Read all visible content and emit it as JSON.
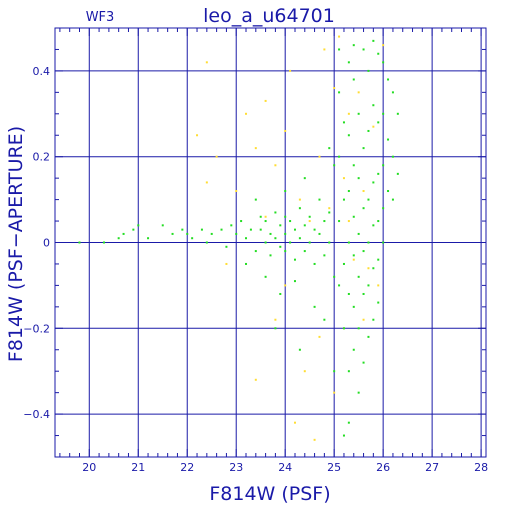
{
  "chart_data": {
    "type": "scatter",
    "panel_label": "WF3",
    "title": "leo_a_u64701",
    "xlabel": "F814W (PSF)",
    "ylabel": "F814W (PSF−APERTURE)",
    "xlim": [
      19.3,
      28.1
    ],
    "ylim": [
      -0.5,
      0.5
    ],
    "xticks": [
      20,
      21,
      22,
      23,
      24,
      25,
      26,
      27,
      28
    ],
    "xtick_labels": [
      "20",
      "21",
      "22",
      "23",
      "24",
      "25",
      "26",
      "27",
      "28"
    ],
    "yticks": [
      -0.4,
      -0.2,
      0,
      0.2,
      0.4
    ],
    "ytick_labels": [
      "−0.4",
      "−0.2",
      "0",
      "0.2",
      "0.4"
    ],
    "grid": true,
    "colors": {
      "axes": "#1a1aa8",
      "green": "#22dd22",
      "yellow": "#ffdd33"
    },
    "series": [
      {
        "color": "green",
        "points": [
          [
            19.8,
            0.0
          ],
          [
            20.3,
            0.0
          ],
          [
            20.6,
            0.01
          ],
          [
            20.7,
            0.02
          ],
          [
            20.9,
            0.03
          ],
          [
            21.0,
            0.04
          ],
          [
            21.2,
            0.01
          ],
          [
            21.5,
            0.04
          ],
          [
            21.7,
            0.02
          ],
          [
            21.9,
            0.03
          ],
          [
            22.0,
            0.02
          ],
          [
            22.1,
            0.01
          ],
          [
            22.3,
            0.03
          ],
          [
            22.4,
            0.0
          ],
          [
            22.5,
            0.02
          ],
          [
            22.7,
            0.03
          ],
          [
            22.8,
            -0.01
          ],
          [
            22.9,
            0.04
          ],
          [
            23.0,
            0.02
          ],
          [
            23.1,
            0.05
          ],
          [
            23.2,
            0.01
          ],
          [
            23.3,
            0.03
          ],
          [
            23.4,
            -0.02
          ],
          [
            23.5,
            0.06
          ],
          [
            23.5,
            0.03
          ],
          [
            23.6,
            0.0
          ],
          [
            23.6,
            0.05
          ],
          [
            23.7,
            0.02
          ],
          [
            23.7,
            -0.03
          ],
          [
            23.8,
            0.07
          ],
          [
            23.8,
            0.01
          ],
          [
            23.9,
            0.04
          ],
          [
            23.9,
            -0.01
          ],
          [
            24.0,
            0.06
          ],
          [
            24.0,
            0.02
          ],
          [
            24.0,
            -0.02
          ],
          [
            24.1,
            0.05
          ],
          [
            24.1,
            0.0
          ],
          [
            24.2,
            0.03
          ],
          [
            24.2,
            -0.04
          ],
          [
            24.3,
            0.08
          ],
          [
            24.3,
            0.01
          ],
          [
            24.4,
            0.04
          ],
          [
            24.4,
            -0.02
          ],
          [
            24.5,
            0.06
          ],
          [
            24.5,
            0.0
          ],
          [
            24.6,
            0.03
          ],
          [
            24.6,
            -0.05
          ],
          [
            24.7,
            0.1
          ],
          [
            24.7,
            0.02
          ],
          [
            24.8,
            0.05
          ],
          [
            24.8,
            -0.03
          ],
          [
            24.9,
            0.07
          ],
          [
            24.9,
            0.0
          ],
          [
            23.6,
            -0.08
          ],
          [
            23.9,
            -0.12
          ],
          [
            24.2,
            -0.09
          ],
          [
            24.6,
            -0.15
          ],
          [
            23.2,
            -0.05
          ],
          [
            23.4,
            0.1
          ],
          [
            24.0,
            0.12
          ],
          [
            24.4,
            0.15
          ],
          [
            23.8,
            -0.2
          ],
          [
            24.3,
            -0.25
          ],
          [
            25.1,
            0.35
          ],
          [
            25.1,
            0.2
          ],
          [
            25.1,
            0.05
          ],
          [
            25.1,
            -0.1
          ],
          [
            25.2,
            0.28
          ],
          [
            25.2,
            0.1
          ],
          [
            25.2,
            -0.05
          ],
          [
            25.2,
            -0.2
          ],
          [
            25.3,
            0.42
          ],
          [
            25.3,
            0.25
          ],
          [
            25.3,
            0.12
          ],
          [
            25.3,
            0.0
          ],
          [
            25.3,
            -0.12
          ],
          [
            25.3,
            -0.3
          ],
          [
            25.4,
            0.38
          ],
          [
            25.4,
            0.18
          ],
          [
            25.4,
            0.06
          ],
          [
            25.4,
            -0.03
          ],
          [
            25.4,
            -0.15
          ],
          [
            25.4,
            -0.25
          ],
          [
            25.5,
            0.3
          ],
          [
            25.5,
            0.15
          ],
          [
            25.5,
            0.02
          ],
          [
            25.5,
            -0.08
          ],
          [
            25.5,
            -0.2
          ],
          [
            25.5,
            -0.35
          ],
          [
            25.6,
            0.45
          ],
          [
            25.6,
            0.22
          ],
          [
            25.6,
            0.08
          ],
          [
            25.6,
            -0.02
          ],
          [
            25.6,
            -0.12
          ],
          [
            25.6,
            -0.28
          ],
          [
            25.7,
            0.4
          ],
          [
            25.7,
            0.26
          ],
          [
            25.7,
            0.1
          ],
          [
            25.7,
            0.0
          ],
          [
            25.7,
            -0.1
          ],
          [
            25.7,
            -0.22
          ],
          [
            25.8,
            0.47
          ],
          [
            25.8,
            0.32
          ],
          [
            25.8,
            0.14
          ],
          [
            25.8,
            0.04
          ],
          [
            25.8,
            -0.06
          ],
          [
            25.8,
            -0.18
          ],
          [
            25.9,
            0.44
          ],
          [
            25.9,
            0.28
          ],
          [
            25.9,
            0.16
          ],
          [
            25.9,
            0.05
          ],
          [
            25.9,
            -0.04
          ],
          [
            25.9,
            -0.14
          ],
          [
            26.0,
            0.42
          ],
          [
            26.0,
            0.3
          ],
          [
            26.0,
            0.18
          ],
          [
            26.0,
            0.08
          ],
          [
            26.0,
            0.0
          ],
          [
            26.1,
            0.38
          ],
          [
            26.1,
            0.24
          ],
          [
            26.1,
            0.12
          ],
          [
            26.2,
            0.35
          ],
          [
            26.2,
            0.2
          ],
          [
            26.2,
            0.1
          ],
          [
            26.3,
            0.3
          ],
          [
            26.3,
            0.16
          ],
          [
            25.0,
            0.18
          ],
          [
            25.0,
            -0.08
          ],
          [
            25.0,
            -0.3
          ],
          [
            25.2,
            -0.45
          ],
          [
            25.3,
            -0.42
          ],
          [
            25.1,
            0.45
          ],
          [
            24.9,
            0.22
          ],
          [
            24.8,
            -0.18
          ],
          [
            25.4,
            0.46
          ]
        ]
      },
      {
        "color": "yellow",
        "points": [
          [
            22.2,
            0.25
          ],
          [
            22.4,
            0.42
          ],
          [
            22.6,
            0.2
          ],
          [
            22.4,
            0.14
          ],
          [
            23.0,
            0.12
          ],
          [
            23.2,
            0.3
          ],
          [
            23.4,
            0.22
          ],
          [
            23.6,
            0.33
          ],
          [
            23.8,
            0.18
          ],
          [
            24.0,
            0.26
          ],
          [
            24.1,
            0.4
          ],
          [
            24.3,
            0.1
          ],
          [
            24.5,
            0.05
          ],
          [
            24.7,
            0.2
          ],
          [
            24.8,
            0.45
          ],
          [
            25.0,
            0.36
          ],
          [
            25.1,
            0.48
          ],
          [
            25.2,
            0.15
          ],
          [
            25.3,
            0.05
          ],
          [
            25.4,
            -0.04
          ],
          [
            25.5,
            0.35
          ],
          [
            25.6,
            0.12
          ],
          [
            25.7,
            -0.06
          ],
          [
            25.8,
            0.27
          ],
          [
            24.4,
            -0.3
          ],
          [
            23.8,
            -0.18
          ],
          [
            24.2,
            -0.42
          ],
          [
            24.6,
            -0.46
          ],
          [
            25.0,
            -0.35
          ],
          [
            25.2,
            -0.2
          ],
          [
            23.4,
            -0.32
          ],
          [
            24.0,
            -0.1
          ],
          [
            23.6,
            0.06
          ],
          [
            22.8,
            -0.05
          ],
          [
            24.9,
            0.08
          ],
          [
            25.6,
            -0.18
          ],
          [
            25.3,
            0.3
          ],
          [
            24.7,
            -0.22
          ],
          [
            26.0,
            0.46
          ],
          [
            25.9,
            -0.1
          ]
        ]
      }
    ]
  }
}
